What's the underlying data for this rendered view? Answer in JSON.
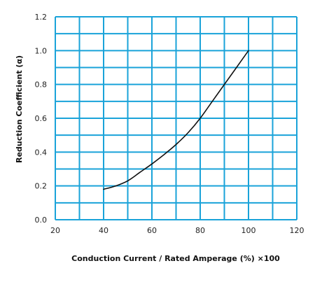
{
  "chart_data": {
    "type": "line",
    "title": "",
    "xlabel": "Conduction Current / Rated Amperage (%) ×100",
    "ylabel": "Reduction Coefficient (α)",
    "xlim": [
      20,
      120
    ],
    "ylim": [
      0.0,
      1.2
    ],
    "x_ticks": [
      "20",
      "40",
      "60",
      "80",
      "100",
      "120"
    ],
    "y_ticks": [
      "0.0",
      "0.2",
      "0.4",
      "0.6",
      "0.8",
      "1.0",
      "1.2"
    ],
    "grid": true,
    "grid_color": "#1aa3d9",
    "line_color": "#111111",
    "series": [
      {
        "x": [
          40,
          45,
          50,
          55,
          60,
          65,
          70,
          75,
          80,
          85,
          90,
          95,
          100
        ],
        "values": [
          0.18,
          0.2,
          0.23,
          0.28,
          0.33,
          0.385,
          0.445,
          0.515,
          0.6,
          0.7,
          0.8,
          0.9,
          1.0
        ]
      }
    ]
  }
}
